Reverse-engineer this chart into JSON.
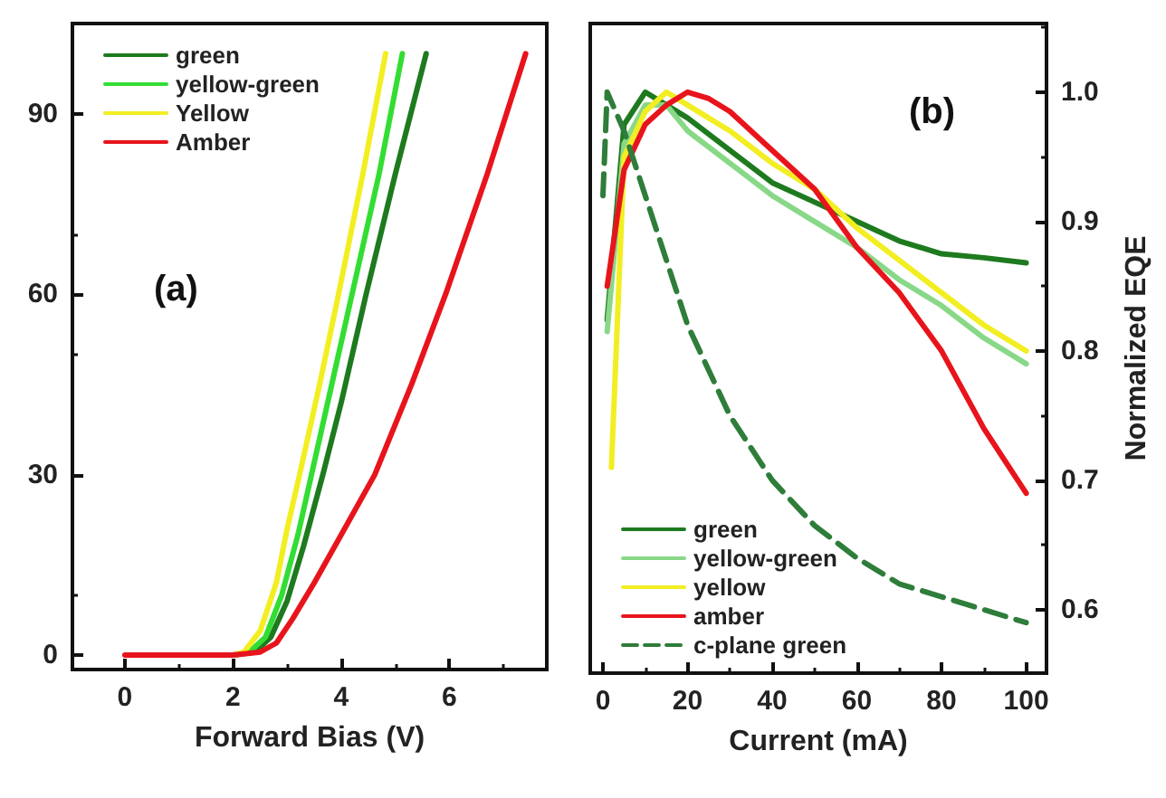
{
  "chart_data": [
    {
      "type": "line",
      "xlabel": "Forward Bias (V)",
      "annotations": [
        "(a)"
      ],
      "xlim": [
        -0.97,
        7.8
      ],
      "xticks": [
        0,
        2,
        4,
        6
      ],
      "ylim": [
        -2.4,
        105
      ],
      "yticks": [
        0,
        30,
        60,
        90
      ],
      "grid": false,
      "legend": "top left",
      "marker": "none",
      "line_style": "solid",
      "series": [
        {
          "name": "green",
          "color": "#1e7a1e",
          "x": [
            2,
            2.4,
            2.7,
            3.0,
            3.3,
            3.66,
            4.0,
            4.46,
            5.0,
            5.57
          ],
          "values": [
            0,
            0.5,
            3,
            9,
            18,
            30,
            42,
            60,
            80,
            100
          ]
        },
        {
          "name": "yellow-green",
          "color": "#33dd33",
          "x": [
            2,
            2.3,
            2.6,
            2.9,
            3.2,
            3.45,
            3.8,
            4.2,
            4.7,
            5.13
          ],
          "values": [
            0,
            0.5,
            3,
            10,
            20,
            30,
            44,
            60,
            80,
            100
          ]
        },
        {
          "name": "Yellow",
          "color": "#f2ee22",
          "x": [
            2,
            2.2,
            2.5,
            2.8,
            3.0,
            3.23,
            3.6,
            3.95,
            4.4,
            4.82
          ],
          "values": [
            0,
            0.5,
            4,
            12,
            21,
            30,
            45,
            60,
            80,
            100
          ]
        },
        {
          "name": "Amber",
          "color": "#e8141c",
          "x": [
            0,
            1,
            2,
            2.5,
            2.8,
            3.1,
            3.5,
            4.0,
            4.62,
            5.3,
            5.93,
            6.7,
            7.41
          ],
          "values": [
            0,
            0,
            0,
            0.5,
            2,
            6,
            12,
            20,
            30,
            45,
            60,
            80,
            100
          ]
        }
      ]
    },
    {
      "type": "line",
      "xlabel": "Current (mA)",
      "y2label": "Normalized EQE",
      "annotations": [
        "(b)"
      ],
      "xlim": [
        -3,
        104.8
      ],
      "xticks": [
        0,
        20,
        40,
        60,
        80,
        100
      ],
      "y2lim": [
        0.551,
        1.053
      ],
      "y2ticks": [
        0.6,
        0.7,
        0.8,
        0.9,
        {
          "value": 1,
          "label": "1.0"
        }
      ],
      "grid": false,
      "legend": "bottom left",
      "marker": "none",
      "series": [
        {
          "name": "green",
          "color": "#1e7a1e",
          "axis": "y2",
          "line_style": "solid",
          "x": [
            1,
            5,
            10,
            15,
            20,
            30,
            40,
            50,
            60,
            70,
            80,
            90,
            100
          ],
          "values": [
            0.824,
            0.975,
            1.0,
            0.99,
            0.98,
            0.955,
            0.93,
            0.915,
            0.9,
            0.885,
            0.875,
            0.872,
            0.868
          ]
        },
        {
          "name": "yellow-green",
          "color": "#88d888",
          "axis": "y2",
          "line_style": "solid",
          "x": [
            1,
            5,
            10,
            15,
            20,
            30,
            40,
            50,
            60,
            70,
            80,
            90,
            100
          ],
          "values": [
            0.815,
            0.96,
            0.99,
            0.99,
            0.97,
            0.945,
            0.92,
            0.9,
            0.88,
            0.855,
            0.835,
            0.81,
            0.79
          ]
        },
        {
          "name": "yellow",
          "color": "#f2ee22",
          "axis": "y2",
          "line_style": "solid",
          "x": [
            2,
            5,
            10,
            15,
            20,
            30,
            40,
            50,
            60,
            70,
            80,
            90,
            100
          ],
          "values": [
            0.71,
            0.95,
            0.985,
            1.0,
            0.99,
            0.97,
            0.945,
            0.925,
            0.895,
            0.87,
            0.845,
            0.82,
            0.8
          ]
        },
        {
          "name": "amber",
          "color": "#e8141c",
          "axis": "y2",
          "line_style": "solid",
          "x": [
            1,
            5,
            10,
            15,
            20,
            25,
            30,
            40,
            50,
            60,
            70,
            80,
            90,
            100
          ],
          "values": [
            0.85,
            0.94,
            0.975,
            0.99,
            1.0,
            0.995,
            0.985,
            0.955,
            0.925,
            0.88,
            0.845,
            0.8,
            0.74,
            0.69
          ]
        },
        {
          "name": "c-plane green",
          "color": "#2e7d3a",
          "axis": "y2",
          "line_style": "dashed",
          "x": [
            0,
            1,
            5,
            10,
            20,
            30,
            40,
            50,
            60,
            70,
            80,
            90,
            100
          ],
          "values": [
            0.92,
            1.0,
            0.97,
            0.92,
            0.82,
            0.75,
            0.7,
            0.665,
            0.64,
            0.62,
            0.61,
            0.6,
            0.59
          ]
        }
      ]
    }
  ]
}
